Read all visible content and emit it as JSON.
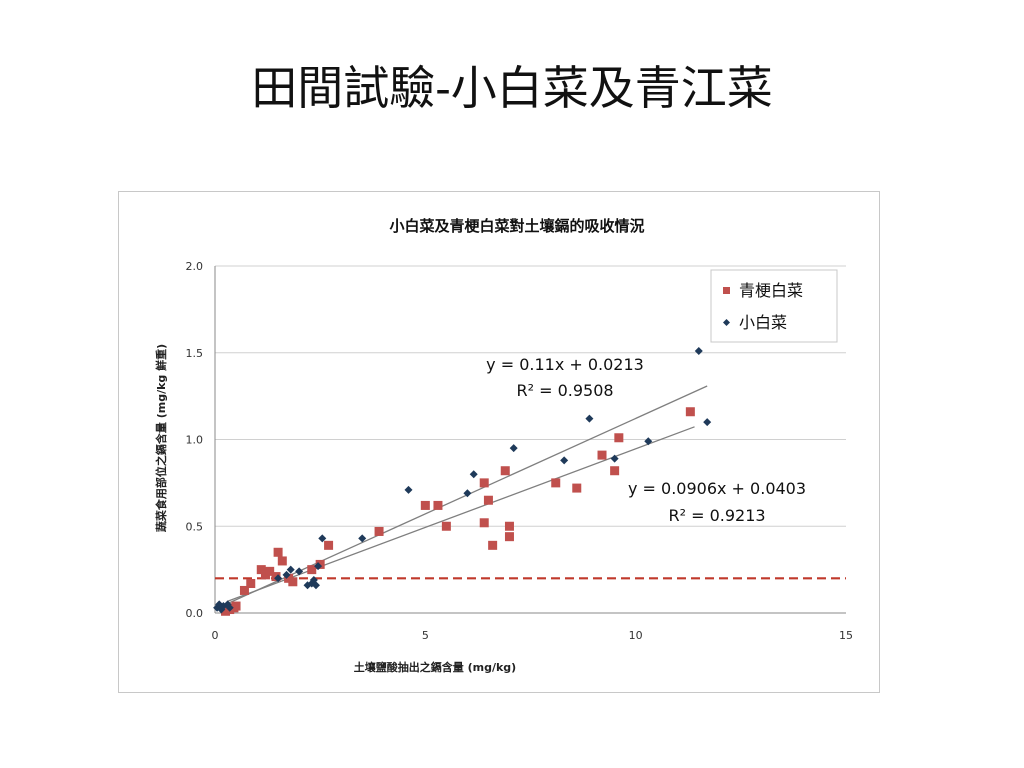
{
  "slide": {
    "title": "田間試驗-小白菜及青江菜"
  },
  "chart_data": {
    "type": "scatter",
    "title": "小白菜及青梗白菜對土壤鎘的吸收情況",
    "xlabel": "土壤鹽酸抽出之鎘含量 (mg/kg)",
    "ylabel": "蔬菜食用部位之鎘含量 (mg/kg 鮮重)",
    "xlim": [
      0,
      15
    ],
    "ylim": [
      0,
      2.0
    ],
    "x_ticks": [
      "0",
      "5",
      "10",
      "15"
    ],
    "y_ticks": [
      "0.0",
      "0.5",
      "1.0",
      "1.5",
      "2.0"
    ],
    "grid": "horizontal",
    "legend_position": "top-right",
    "threshold": {
      "y": 0.2,
      "color": "#c0392b",
      "style": "dashed"
    },
    "series": [
      {
        "name": "青梗白菜",
        "marker": "square",
        "color": "#c0504d",
        "trendline": {
          "slope": 0.0906,
          "intercept": 0.0403,
          "x_range": [
            0.3,
            11.4
          ],
          "color": "#7f7f7f"
        },
        "equation": "y = 0.0906x + 0.0403",
        "r2": "R² = 0.9213",
        "points": [
          [
            0.25,
            0.01
          ],
          [
            0.35,
            0.02
          ],
          [
            0.45,
            0.03
          ],
          [
            0.5,
            0.04
          ],
          [
            0.7,
            0.13
          ],
          [
            0.85,
            0.17
          ],
          [
            1.1,
            0.25
          ],
          [
            1.2,
            0.22
          ],
          [
            1.3,
            0.24
          ],
          [
            1.45,
            0.21
          ],
          [
            1.5,
            0.35
          ],
          [
            1.6,
            0.3
          ],
          [
            1.75,
            0.2
          ],
          [
            1.85,
            0.18
          ],
          [
            2.3,
            0.25
          ],
          [
            2.5,
            0.28
          ],
          [
            2.7,
            0.39
          ],
          [
            3.9,
            0.47
          ],
          [
            5.0,
            0.62
          ],
          [
            5.3,
            0.62
          ],
          [
            5.5,
            0.5
          ],
          [
            6.4,
            0.75
          ],
          [
            6.4,
            0.52
          ],
          [
            6.5,
            0.65
          ],
          [
            6.6,
            0.39
          ],
          [
            6.9,
            0.82
          ],
          [
            7.0,
            0.5
          ],
          [
            7.0,
            0.44
          ],
          [
            8.1,
            0.75
          ],
          [
            8.6,
            0.72
          ],
          [
            9.2,
            0.91
          ],
          [
            9.5,
            0.82
          ],
          [
            9.6,
            1.01
          ],
          [
            11.3,
            1.16
          ]
        ]
      },
      {
        "name": "小白菜",
        "marker": "diamond",
        "color": "#1f3a5a",
        "trendline": {
          "slope": 0.11,
          "intercept": 0.0213,
          "x_range": [
            0.1,
            11.7
          ],
          "color": "#7f7f7f"
        },
        "equation": "y = 0.11x + 0.0213",
        "r2": "R² = 0.9508",
        "points": [
          [
            0.05,
            0.03
          ],
          [
            0.1,
            0.05
          ],
          [
            0.15,
            0.02
          ],
          [
            0.2,
            0.04
          ],
          [
            0.3,
            0.05
          ],
          [
            0.35,
            0.03
          ],
          [
            1.5,
            0.2
          ],
          [
            1.7,
            0.22
          ],
          [
            1.8,
            0.25
          ],
          [
            2.0,
            0.24
          ],
          [
            2.2,
            0.16
          ],
          [
            2.3,
            0.17
          ],
          [
            2.35,
            0.19
          ],
          [
            2.4,
            0.16
          ],
          [
            2.45,
            0.27
          ],
          [
            2.55,
            0.43
          ],
          [
            3.5,
            0.43
          ],
          [
            4.6,
            0.71
          ],
          [
            6.0,
            0.69
          ],
          [
            6.15,
            0.8
          ],
          [
            7.1,
            0.95
          ],
          [
            8.3,
            0.88
          ],
          [
            8.9,
            1.12
          ],
          [
            9.5,
            0.89
          ],
          [
            10.3,
            0.99
          ],
          [
            11.5,
            1.51
          ],
          [
            11.7,
            1.1
          ]
        ]
      }
    ]
  }
}
